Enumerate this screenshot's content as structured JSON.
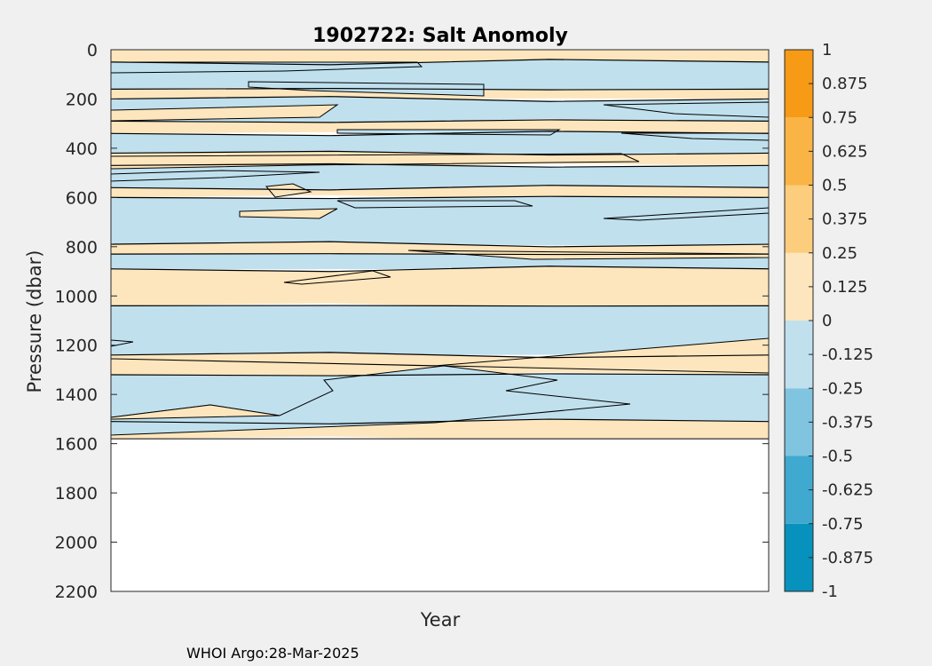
{
  "chart_data": {
    "type": "heatmap",
    "title": "1902722: Salt Anomoly",
    "xlabel": "Year",
    "ylabel": "Pressure (dbar)",
    "ylim": [
      0,
      2200
    ],
    "y_reversed": true,
    "y_ticks": [
      "0",
      "200",
      "400",
      "600",
      "800",
      "1000",
      "1200",
      "1400",
      "1600",
      "1800",
      "2000",
      "2200"
    ],
    "x_ticks": [],
    "data_max_pressure": 1580,
    "legend": "colorbar-right",
    "colorbar": {
      "clim": [
        -1,
        1
      ],
      "ticks": [
        "1",
        "0.875",
        "0.75",
        "0.625",
        "0.5",
        "0.375",
        "0.25",
        "0.125",
        "0",
        "-0.125",
        "-0.25",
        "-0.375",
        "-0.5",
        "-0.625",
        "-0.75",
        "-0.875",
        "-1"
      ],
      "bins": [
        {
          "from": -1.0,
          "to": -0.75,
          "color": "#0792bd"
        },
        {
          "from": -0.75,
          "to": -0.5,
          "color": "#40a9d0"
        },
        {
          "from": -0.5,
          "to": -0.25,
          "color": "#80c4e0"
        },
        {
          "from": -0.25,
          "to": 0.0,
          "color": "#c0e0ee"
        },
        {
          "from": 0.0,
          "to": 0.25,
          "color": "#fde6bd"
        },
        {
          "from": 0.25,
          "to": 0.5,
          "color": "#fbcd7c"
        },
        {
          "from": 0.5,
          "to": 0.75,
          "color": "#f9b445"
        },
        {
          "from": 0.75,
          "to": 1.0,
          "color": "#f79a15"
        }
      ]
    },
    "layers": [
      {
        "from": 0,
        "to": 50,
        "value": 0.1
      },
      {
        "from": 50,
        "to": 160,
        "value": -0.1
      },
      {
        "from": 160,
        "to": 200,
        "value": 0.1
      },
      {
        "from": 200,
        "to": 290,
        "value": -0.1
      },
      {
        "from": 290,
        "to": 340,
        "value": 0.1
      },
      {
        "from": 340,
        "to": 420,
        "value": -0.1
      },
      {
        "from": 420,
        "to": 470,
        "value": 0.1
      },
      {
        "from": 470,
        "to": 560,
        "value": -0.1
      },
      {
        "from": 560,
        "to": 600,
        "value": 0.1
      },
      {
        "from": 600,
        "to": 790,
        "value": -0.1
      },
      {
        "from": 790,
        "to": 830,
        "value": 0.1
      },
      {
        "from": 830,
        "to": 890,
        "value": -0.1
      },
      {
        "from": 890,
        "to": 1040,
        "value": 0.1
      },
      {
        "from": 1040,
        "to": 1240,
        "value": -0.1
      },
      {
        "from": 1240,
        "to": 1320,
        "value": 0.1
      },
      {
        "from": 1320,
        "to": 1510,
        "value": -0.1
      },
      {
        "from": 1510,
        "to": 1580,
        "value": 0.1
      }
    ],
    "footer": "WHOI Argo:28-Mar-2025"
  }
}
